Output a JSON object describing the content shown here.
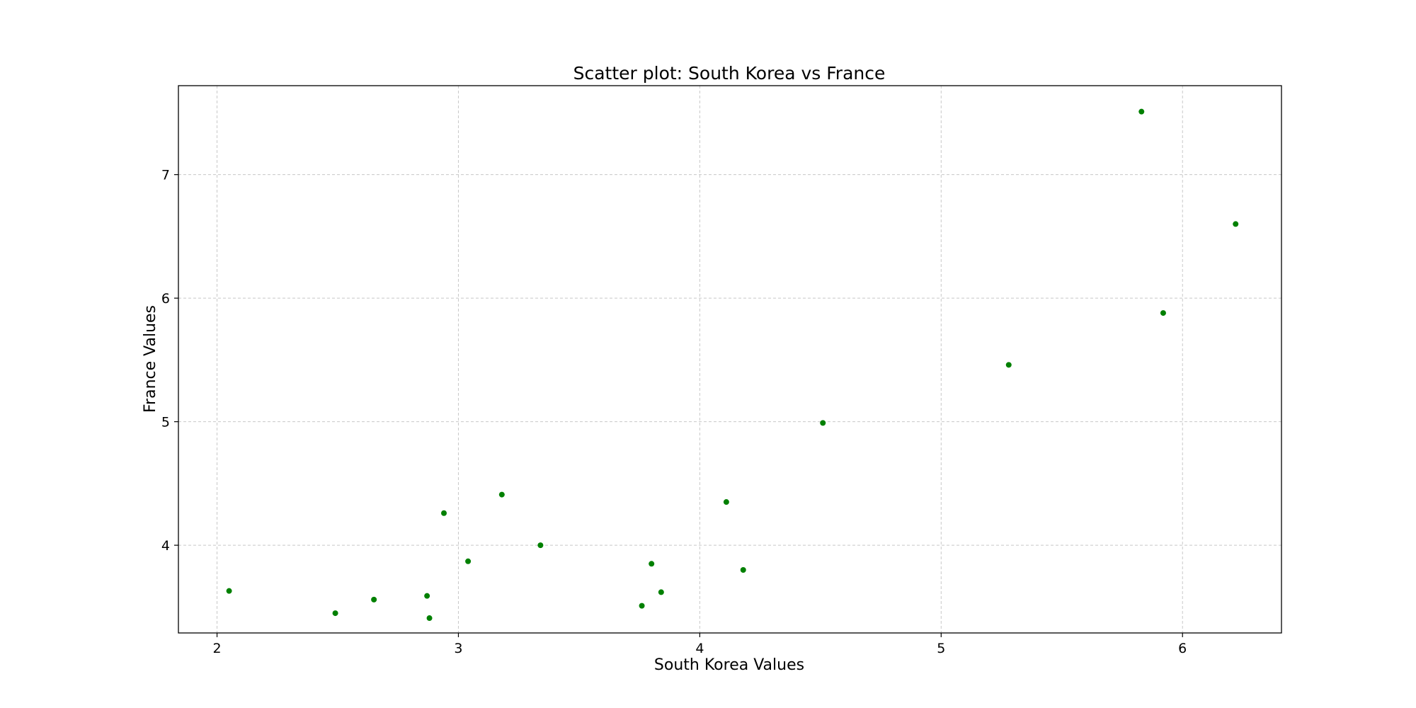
{
  "chart_data": {
    "type": "scatter",
    "title": "Scatter plot: South Korea vs France",
    "xlabel": "South Korea Values",
    "ylabel": "France Values",
    "xlim": [
      1.84,
      6.41
    ],
    "ylim": [
      3.29,
      7.72
    ],
    "xticks": [
      2,
      3,
      4,
      5,
      6
    ],
    "yticks": [
      4,
      5,
      6,
      7
    ],
    "grid": true,
    "legend": "none",
    "marker_color": "#008000",
    "grid_color": "#c8c8c8",
    "series": [
      {
        "x": [
          5.83,
          6.22,
          5.92,
          5.28,
          4.51,
          4.11,
          4.18,
          3.8,
          3.84,
          3.76,
          3.34,
          3.18,
          3.04,
          2.94,
          2.87,
          2.88,
          2.65,
          2.49,
          2.05
        ],
        "y": [
          7.51,
          6.6,
          5.88,
          5.46,
          4.99,
          4.35,
          3.8,
          3.85,
          3.62,
          3.51,
          4.0,
          4.41,
          3.87,
          4.26,
          3.59,
          3.41,
          3.56,
          3.45,
          3.63
        ]
      }
    ]
  }
}
